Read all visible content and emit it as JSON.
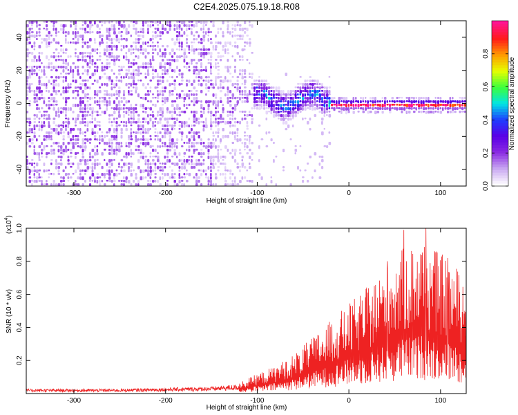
{
  "title": "C2E4.2025.075.19.18.R08",
  "chart_data": [
    {
      "type": "heatmap",
      "title": "C2E4.2025.075.19.18.R08",
      "xlabel": "Height of straight line (km)",
      "ylabel": "Frequency (Hz)",
      "xlim": [
        -352,
        128
      ],
      "ylim": [
        -50,
        50
      ],
      "xticks": [
        -300,
        -200,
        -100,
        0,
        100
      ],
      "yticks": [
        -40,
        -20,
        0,
        20,
        40
      ],
      "colorbar": {
        "label": "Normalized spectral amplitude",
        "range": [
          0.0,
          1.0
        ],
        "ticks": [
          "0.0",
          "0.2",
          "0.4",
          "0.6",
          "0.8"
        ],
        "tick_values": [
          0.0,
          0.2,
          0.4,
          0.6,
          0.8
        ],
        "colors": [
          "#ffffff",
          "#c9a8f2",
          "#8b2be2",
          "#5a00e6",
          "#1f3cff",
          "#00e5e5",
          "#3cff3c",
          "#e6ff00",
          "#ff9a00",
          "#ff1a1a",
          "#ff1493"
        ]
      },
      "regions": [
        {
          "name": "noise",
          "x_range": [
            -352,
            -105
          ],
          "freq_range": [
            -50,
            50
          ],
          "amplitude": 0.12
        },
        {
          "name": "transition",
          "x_range": [
            -105,
            -20
          ],
          "center_freq": 3,
          "spread_hz": 12,
          "amplitude": 0.35
        },
        {
          "name": "carrier",
          "x_range": [
            -20,
            128
          ],
          "center_freq": 0,
          "spread_hz": 3,
          "amplitude": 1.0
        }
      ]
    },
    {
      "type": "line",
      "xlabel": "Height of straight line (km)",
      "ylabel": "SNR (10 * v/v)",
      "scale_label": "(x10",
      "scale_exp": "4",
      "scale_close": ")",
      "xlim": [
        -352,
        128
      ],
      "ylim": [
        0,
        1.0
      ],
      "xticks": [
        -300,
        -200,
        -100,
        0,
        100
      ],
      "yticks": [
        0.2,
        0.4,
        0.6,
        0.8,
        1.0
      ],
      "series": [
        {
          "name": "SNR",
          "color": "#ee2222",
          "x": [
            -352,
            -300,
            -250,
            -200,
            -150,
            -120,
            -100,
            -80,
            -60,
            -40,
            -20,
            0,
            20,
            40,
            60,
            80,
            100,
            128
          ],
          "y": [
            0.02,
            0.02,
            0.02,
            0.025,
            0.03,
            0.04,
            0.07,
            0.1,
            0.14,
            0.2,
            0.26,
            0.32,
            0.38,
            0.45,
            0.52,
            0.55,
            0.5,
            0.42
          ],
          "peaks": [
            {
              "x": 60,
              "y": 0.99
            },
            {
              "x": 84,
              "y": 1.0
            },
            {
              "x": 42,
              "y": 0.8
            },
            {
              "x": 108,
              "y": 0.82
            }
          ]
        }
      ]
    }
  ]
}
